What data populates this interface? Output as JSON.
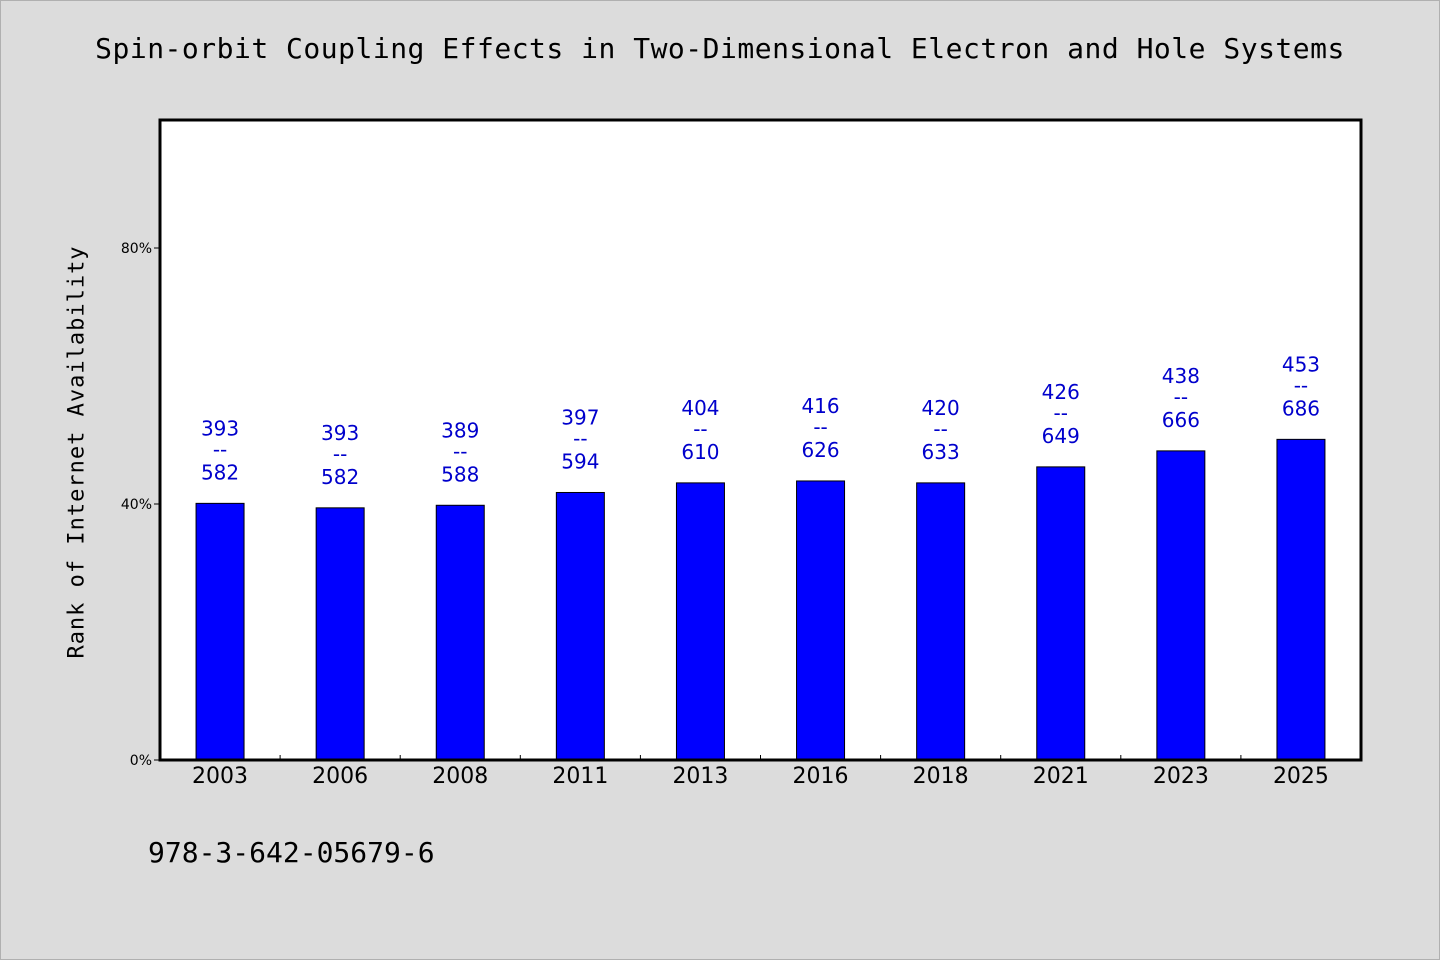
{
  "chart_data": {
    "type": "bar",
    "title": "Spin-orbit Coupling Effects in Two-Dimensional Electron and Hole Systems",
    "xlabel": "",
    "ylabel": "Rank of Internet Availability",
    "ylim": [
      0,
      100
    ],
    "yticks": [
      0,
      40,
      80
    ],
    "ytick_labels": [
      "0%",
      "40%",
      "80%"
    ],
    "grid": false,
    "bar_color": "#0000ff",
    "label_color": "#0000cc",
    "categories": [
      "2003",
      "2006",
      "2008",
      "2011",
      "2013",
      "2016",
      "2018",
      "2021",
      "2023",
      "2025"
    ],
    "values": [
      40.1,
      39.4,
      39.8,
      41.8,
      43.3,
      43.6,
      43.3,
      45.8,
      48.3,
      50.1
    ],
    "data_labels": [
      {
        "top": "393",
        "sep": "--",
        "bottom": "582"
      },
      {
        "top": "393",
        "sep": "--",
        "bottom": "582"
      },
      {
        "top": "389",
        "sep": "--",
        "bottom": "588"
      },
      {
        "top": "397",
        "sep": "--",
        "bottom": "594"
      },
      {
        "top": "404",
        "sep": "--",
        "bottom": "610"
      },
      {
        "top": "416",
        "sep": "--",
        "bottom": "626"
      },
      {
        "top": "420",
        "sep": "--",
        "bottom": "633"
      },
      {
        "top": "426",
        "sep": "--",
        "bottom": "649"
      },
      {
        "top": "438",
        "sep": "--",
        "bottom": "666"
      },
      {
        "top": "453",
        "sep": "--",
        "bottom": "686"
      }
    ]
  },
  "footer": {
    "code": "978-3-642-05679-6"
  }
}
